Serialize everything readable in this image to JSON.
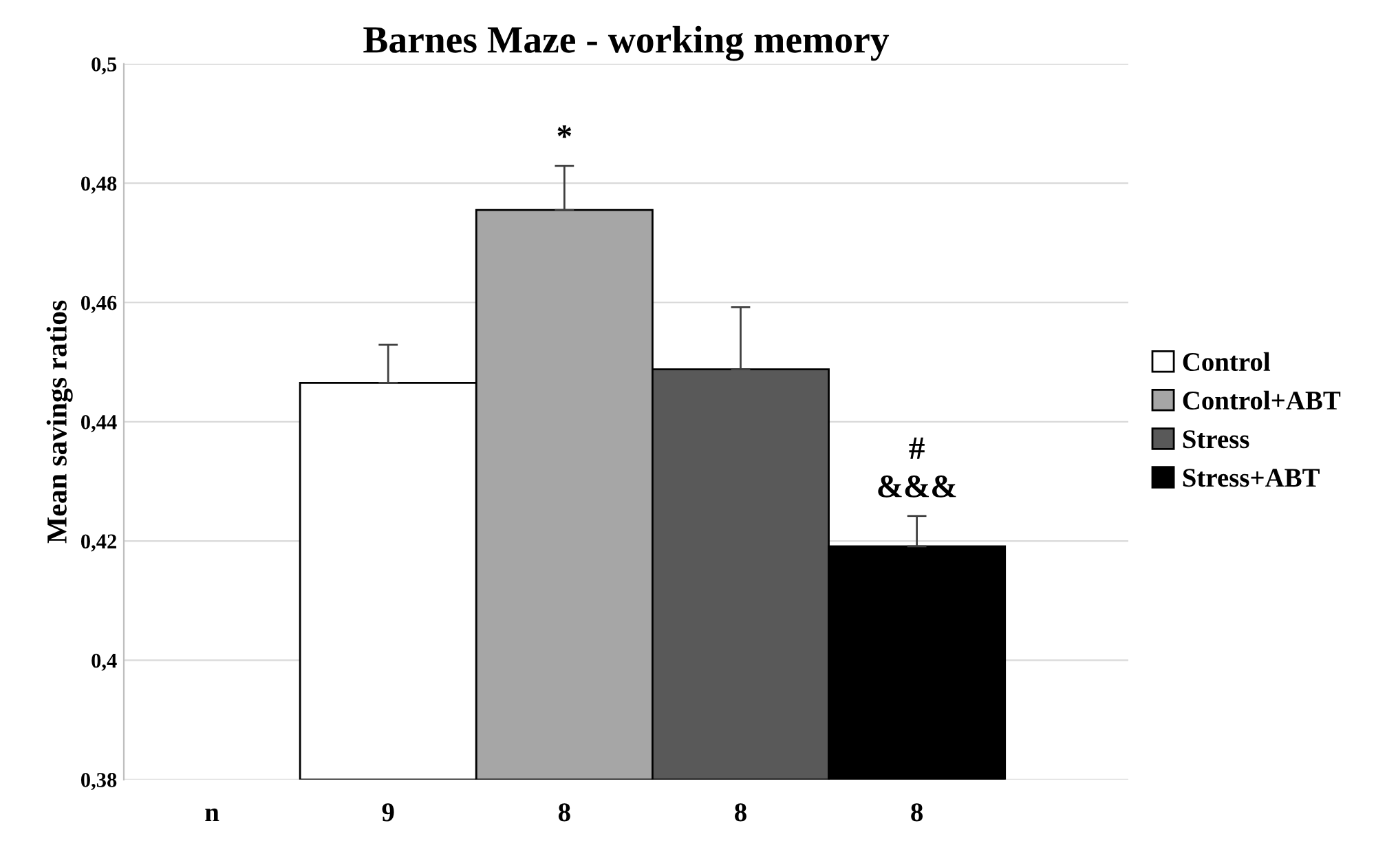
{
  "chart_data": {
    "type": "bar",
    "title": "Barnes Maze - working memory",
    "ylabel": "Mean savings ratios",
    "categories": [
      "n",
      "9",
      "8",
      "8",
      "8"
    ],
    "series": [
      {
        "name": "Control",
        "color": "#ffffff",
        "values": [
          null,
          0.4465,
          null,
          null,
          null
        ],
        "errors": [
          null,
          [
            0.4465,
            0.4529
          ],
          null,
          null,
          null
        ]
      },
      {
        "name": "Control+ABT",
        "color": "#a6a6a6",
        "values": [
          null,
          null,
          0.4755,
          null,
          null
        ],
        "errors": [
          null,
          null,
          [
            0.4755,
            0.4829
          ],
          null,
          null
        ]
      },
      {
        "name": "Stress",
        "color": "#595959",
        "values": [
          null,
          null,
          null,
          0.4488,
          null
        ],
        "errors": [
          null,
          null,
          null,
          [
            0.4488,
            0.4592
          ],
          null
        ]
      },
      {
        "name": "Stress+ABT",
        "color": "#000000",
        "values": [
          null,
          null,
          null,
          null,
          0.4191
        ],
        "errors": [
          null,
          null,
          null,
          null,
          [
            0.4191,
            0.4242
          ]
        ]
      }
    ],
    "ylim": [
      0.38,
      0.5
    ],
    "yticks": [
      {
        "value": 0.38,
        "label": "0,38"
      },
      {
        "value": 0.4,
        "label": "0,4"
      },
      {
        "value": 0.42,
        "label": "0,42"
      },
      {
        "value": 0.44,
        "label": "0,44"
      },
      {
        "value": 0.46,
        "label": "0,46"
      },
      {
        "value": 0.48,
        "label": "0,48"
      },
      {
        "value": 0.5,
        "label": "0,5"
      }
    ],
    "grid": "y",
    "legend": "right",
    "annotations": [
      "*",
      "#",
      "&&&"
    ]
  }
}
